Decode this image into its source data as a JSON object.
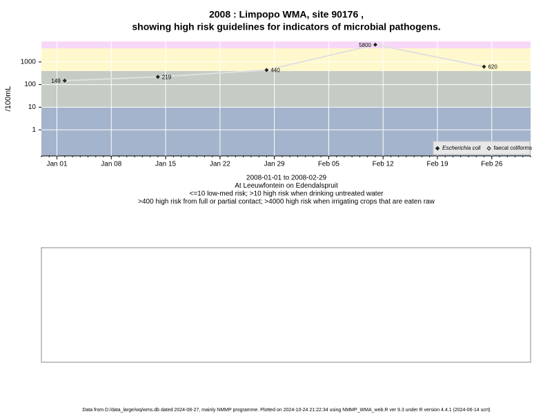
{
  "chart_data": {
    "type": "scatter",
    "title": "2008 : Limpopo WMA, site 90176 ,",
    "subtitle": "showing high risk guidelines for indicators of microbial pathogens.",
    "ylabel": "/100mL",
    "notes": [
      "2008-01-01 to 2008-02-29",
      "At Leeuwfontein on Edendalspruit",
      "<=10 low-med risk; >10 high risk when drinking untreated water",
      ">400 high risk from full or partial contact; >4000 high risk when irrigating crops that are eaten raw"
    ],
    "footer": "Data from D:/data_large/wq/wms.db dated 2024-08-27, mainly NMMP programme. Plotted on 2024-10-24 21:22:34 using NMMP_WMA_web.R ver 9.3 under R version 4.4.1 (2024-06-14 ucrt)",
    "x": [
      "2008-01-02",
      "2008-01-14",
      "2008-01-28",
      "2008-02-11",
      "2008-02-25"
    ],
    "series": [
      {
        "name": "Escherichia coli",
        "color": "#222222",
        "line_color": "#e0e0e0",
        "values": [
          149,
          219,
          440,
          5800,
          620
        ]
      },
      {
        "name": "faecal coliforms",
        "color": "#222222",
        "values": [
          null,
          null,
          null,
          null,
          null
        ]
      }
    ],
    "xlim": [
      "2007-12-30",
      "2008-03-02"
    ],
    "xticks": [
      {
        "value": "2008-01-01",
        "label": "Jan 01"
      },
      {
        "value": "2008-01-08",
        "label": "Jan 08"
      },
      {
        "value": "2008-01-15",
        "label": "Jan 15"
      },
      {
        "value": "2008-01-22",
        "label": "Jan 22"
      },
      {
        "value": "2008-01-29",
        "label": "Jan 29"
      },
      {
        "value": "2008-02-05",
        "label": "Feb 05"
      },
      {
        "value": "2008-02-12",
        "label": "Feb 12"
      },
      {
        "value": "2008-02-19",
        "label": "Feb 19"
      },
      {
        "value": "2008-02-26",
        "label": "Feb 26"
      }
    ],
    "ylim": [
      0.07,
      8100
    ],
    "yticks": [
      1,
      10,
      100,
      1000
    ],
    "log_y": true,
    "grid": true,
    "legend": "bottom-right",
    "bands": [
      {
        "from": 0.07,
        "to": 10,
        "color": "#a4b4cc"
      },
      {
        "from": 10,
        "to": 400,
        "color": "#c4ccc4"
      },
      {
        "from": 400,
        "to": 4000,
        "color": "#fff8cc"
      },
      {
        "from": 4000,
        "to": 8100,
        "color": "#f8d8f8"
      }
    ]
  }
}
